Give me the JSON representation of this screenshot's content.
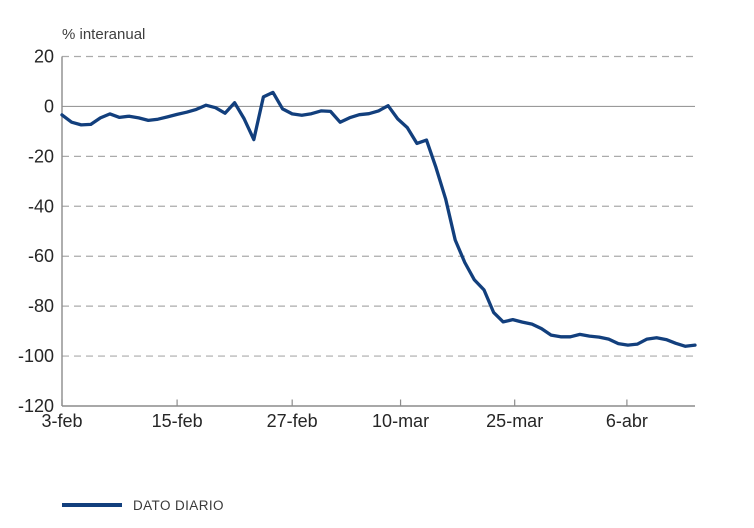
{
  "page": {
    "background": "#ffffff"
  },
  "chart_data": {
    "type": "line",
    "title": "% interanual",
    "xlabel": "",
    "ylabel": "% interanual",
    "ylim": [
      -120,
      20
    ],
    "yticks": [
      20,
      0,
      -20,
      -40,
      -60,
      -80,
      -100,
      -120
    ],
    "grid": "dashed-horizontal",
    "zero_line": true,
    "legend_position": "bottom-left",
    "x_tick_labels": [
      "3-feb",
      "15-feb",
      "27-feb",
      "10-mar",
      "25-mar",
      "6-abr"
    ],
    "x_tick_positions_idx": [
      0,
      12,
      24,
      35.3,
      47.2,
      58.9
    ],
    "n_points": 67,
    "series": [
      {
        "name": "DATO DIARIO",
        "color": "#123f7d",
        "values": [
          -3.4,
          -6.3,
          -7.4,
          -7.2,
          -4.6,
          -3.0,
          -4.4,
          -3.9,
          -4.6,
          -5.6,
          -5.1,
          -4.2,
          -3.2,
          -2.3,
          -1.2,
          0.5,
          -0.5,
          -2.7,
          1.5,
          -5.0,
          -13.3,
          3.8,
          5.6,
          -1.0,
          -3.0,
          -3.5,
          -2.9,
          -1.8,
          -2.0,
          -6.3,
          -4.5,
          -3.3,
          -2.9,
          -1.8,
          0.3,
          -5.0,
          -8.5,
          -14.8,
          -13.5,
          -24.5,
          -37.0,
          -53.5,
          -62.5,
          -69.5,
          -73.5,
          -82.5,
          -86.3,
          -85.4,
          -86.4,
          -87.2,
          -89.0,
          -91.6,
          -92.3,
          -92.3,
          -91.3,
          -92.0,
          -92.4,
          -93.2,
          -95.0,
          -95.6,
          -95.2,
          -93.2,
          -92.7,
          -93.4,
          -94.9,
          -96.1,
          -95.6
        ]
      }
    ]
  },
  "legend": {
    "label": "DATO DIARIO",
    "line_color": "#123f7d"
  },
  "colors": {
    "grid": "#ababab",
    "zero_line": "#9a9a9a",
    "axis": "#8c8c8c",
    "tick_text": "#262626",
    "title_text": "#3f3f3f",
    "legend_text": "#3a3a3a"
  }
}
